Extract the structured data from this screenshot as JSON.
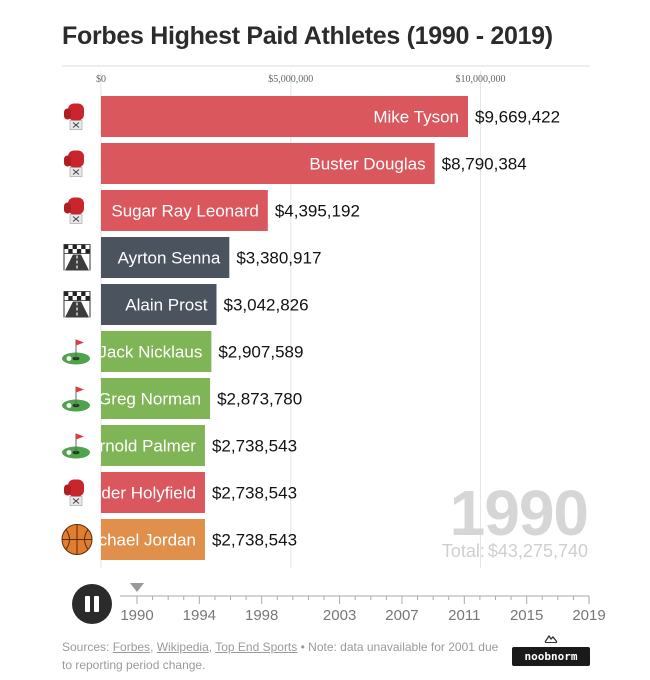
{
  "title": "Forbes Highest Paid Athletes (1990 - 2019)",
  "chart_data": {
    "type": "bar",
    "orientation": "horizontal",
    "title": "Forbes Highest Paid Athletes (1990 - 2019)",
    "xlim": [
      0,
      11000000
    ],
    "x_ticks": [
      {
        "value": 0,
        "label": "$0"
      },
      {
        "value": 5000000,
        "label": "$5,000,000"
      },
      {
        "value": 10000000,
        "label": "$10,000,000"
      }
    ],
    "grid": true,
    "bars": [
      {
        "name": "Mike Tyson",
        "value": 9669422,
        "value_label": "$9,669,422",
        "color": "#d9575d",
        "icon": "boxing-glove-icon"
      },
      {
        "name": "Buster Douglas",
        "value": 8790384,
        "value_label": "$8,790,384",
        "color": "#d9575d",
        "icon": "boxing-glove-icon"
      },
      {
        "name": "Sugar Ray Leonard",
        "value": 4395192,
        "value_label": "$4,395,192",
        "color": "#d9575d",
        "icon": "boxing-glove-icon"
      },
      {
        "name": "Ayrton Senna",
        "value": 3380917,
        "value_label": "$3,380,917",
        "color": "#4b545e",
        "icon": "race-track-icon"
      },
      {
        "name": "Alain Prost",
        "value": 3042826,
        "value_label": "$3,042,826",
        "color": "#4b545e",
        "icon": "race-track-icon"
      },
      {
        "name": "Jack Nicklaus",
        "value": 2907589,
        "value_label": "$2,907,589",
        "color": "#7fb556",
        "icon": "golf-flag-icon"
      },
      {
        "name": "Greg Norman",
        "value": 2873780,
        "value_label": "$2,873,780",
        "color": "#7fb556",
        "icon": "golf-flag-icon"
      },
      {
        "name": "Arnold Palmer",
        "value": 2738543,
        "value_label": "$2,738,543",
        "color": "#7fb556",
        "icon": "golf-flag-icon"
      },
      {
        "name": "Evander Holyfield",
        "value": 2738543,
        "value_label": "$2,738,543",
        "color": "#d9575d",
        "icon": "boxing-glove-icon"
      },
      {
        "name": "Michael Jordan",
        "value": 2738543,
        "value_label": "$2,738,543",
        "color": "#e0904b",
        "icon": "basketball-icon"
      }
    ]
  },
  "current_year": "1990",
  "total_label": "Total:",
  "total_value": "$43,275,740",
  "timeline": {
    "start": 1990,
    "end": 2019,
    "current": 1990,
    "labels": [
      "1990",
      "1994",
      "1998",
      "2003",
      "2007",
      "2011",
      "2015",
      "2019"
    ]
  },
  "controls": {
    "pause_icon": "pause-icon"
  },
  "footer": {
    "prefix": "Sources: ",
    "link1": "Forbes",
    "sep1": ", ",
    "link2": "Wikipedia",
    "sep2": ", ",
    "link3": "Top End Sports",
    "note": " • Note: data unavailable for 2001 due to reporting period change."
  },
  "brand": {
    "name": "noobnorm",
    "icon": "mountain-logo-icon"
  }
}
